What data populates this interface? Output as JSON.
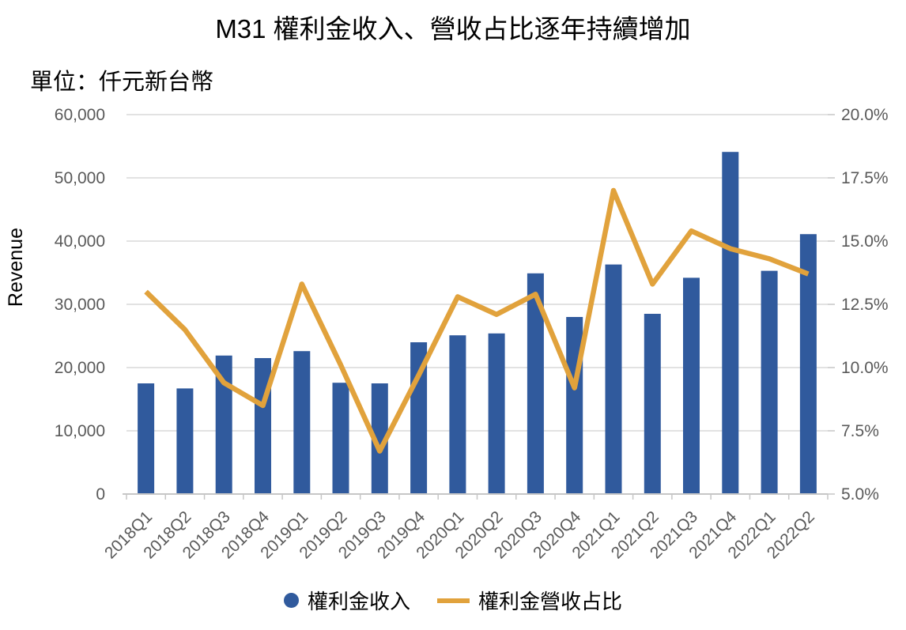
{
  "title": "M31 權利金收入、營收占比逐年持續增加",
  "unit_label": "單位：仟元新台幣",
  "colors": {
    "bar": "#305A9D",
    "line": "#E1A23C",
    "grid": "#D9D9D9",
    "axis": "#C6C6C6",
    "tick_text": "#595959",
    "title_text": "#000000"
  },
  "chart_data": {
    "type": "bar",
    "subtype": "combo-bar-line-dual-axis",
    "title": "M31 權利金收入、營收占比逐年持續增加",
    "xlabel": "",
    "ylabel": "Revenue",
    "grid": "horizontal",
    "legend_position": "bottom",
    "categories": [
      "2018Q1",
      "2018Q2",
      "2018Q3",
      "2018Q4",
      "2019Q1",
      "2019Q2",
      "2019Q3",
      "2019Q4",
      "2020Q1",
      "2020Q2",
      "2020Q3",
      "2020Q4",
      "2021Q1",
      "2021Q2",
      "2021Q3",
      "2021Q4",
      "2022Q1",
      "2022Q2"
    ],
    "series": [
      {
        "name": "權利金收入",
        "type": "bar",
        "axis": "left",
        "values": [
          17500,
          16700,
          21900,
          21500,
          22600,
          17600,
          17500,
          24000,
          25100,
          25400,
          34900,
          28000,
          36300,
          28500,
          34200,
          54100,
          35300,
          41100
        ]
      },
      {
        "name": "權利金營收占比",
        "type": "line",
        "axis": "right",
        "unit": "%",
        "values": [
          13.0,
          11.5,
          9.4,
          8.5,
          13.3,
          10.1,
          6.7,
          9.7,
          12.8,
          12.1,
          12.9,
          9.2,
          17.0,
          13.3,
          15.4,
          14.7,
          14.3,
          13.7
        ]
      }
    ],
    "left_axis": {
      "label": "Revenue",
      "min": 0,
      "max": 60000,
      "step": 10000,
      "tick_labels": [
        "0",
        "10,000",
        "20,000",
        "30,000",
        "40,000",
        "50,000",
        "60,000"
      ]
    },
    "right_axis": {
      "label": "",
      "min": 5,
      "max": 20,
      "step": 2.5,
      "tick_labels": [
        "5.0%",
        "7.5%",
        "10.0%",
        "12.5%",
        "15.0%",
        "17.5%",
        "20.0%"
      ]
    }
  },
  "legend": {
    "items": [
      {
        "label": "權利金收入",
        "marker": "circle"
      },
      {
        "label": "權利金營收占比",
        "marker": "line"
      }
    ]
  }
}
